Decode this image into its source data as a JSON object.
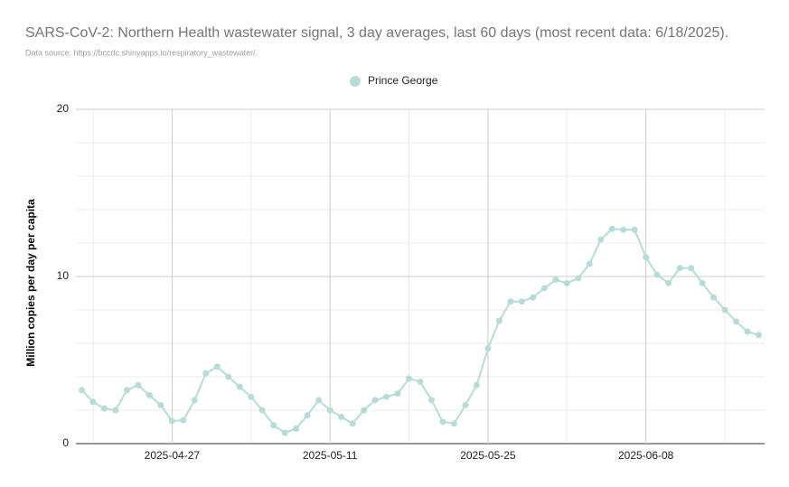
{
  "chart_data": {
    "type": "line",
    "title": "SARS-CoV-2: Northern Health wastewater signal, 3 day averages, last 60 days (most recent data: 6/18/2025).",
    "subtitle": "Data source: https://bccdc.shinyapps.io/respiratory_wastewater/.",
    "y_label": "Million copies per day per capita",
    "legend": "top",
    "grid": true,
    "x": [
      "2025-04-19",
      "2025-04-20",
      "2025-04-21",
      "2025-04-22",
      "2025-04-23",
      "2025-04-24",
      "2025-04-25",
      "2025-04-26",
      "2025-04-27",
      "2025-04-28",
      "2025-04-29",
      "2025-04-30",
      "2025-05-01",
      "2025-05-02",
      "2025-05-03",
      "2025-05-04",
      "2025-05-05",
      "2025-05-06",
      "2025-05-07",
      "2025-05-08",
      "2025-05-09",
      "2025-05-10",
      "2025-05-11",
      "2025-05-12",
      "2025-05-13",
      "2025-05-14",
      "2025-05-15",
      "2025-05-16",
      "2025-05-17",
      "2025-05-18",
      "2025-05-19",
      "2025-05-20",
      "2025-05-21",
      "2025-05-22",
      "2025-05-23",
      "2025-05-24",
      "2025-05-25",
      "2025-05-26",
      "2025-05-27",
      "2025-05-28",
      "2025-05-29",
      "2025-05-30",
      "2025-05-31",
      "2025-06-01",
      "2025-06-02",
      "2025-06-03",
      "2025-06-04",
      "2025-06-05",
      "2025-06-06",
      "2025-06-07",
      "2025-06-08",
      "2025-06-09",
      "2025-06-10",
      "2025-06-11",
      "2025-06-12",
      "2025-06-13",
      "2025-06-14",
      "2025-06-15",
      "2025-06-16",
      "2025-06-17",
      "2025-06-18"
    ],
    "series": [
      {
        "name": "Prince George",
        "color": "#b7dcd8",
        "values": [
          3.2,
          2.5,
          2.1,
          2.0,
          3.2,
          3.5,
          2.9,
          2.3,
          1.35,
          1.4,
          2.6,
          4.2,
          4.6,
          4.0,
          3.4,
          2.8,
          2.0,
          1.1,
          0.65,
          0.9,
          1.7,
          2.6,
          2.0,
          1.6,
          1.2,
          2.0,
          2.6,
          2.8,
          3.0,
          3.9,
          3.7,
          2.6,
          1.3,
          1.2,
          2.3,
          3.5,
          5.7,
          7.35,
          8.5,
          8.5,
          8.75,
          9.3,
          9.8,
          9.6,
          9.9,
          10.75,
          12.2,
          12.85,
          12.8,
          12.8,
          11.15,
          10.1,
          9.6,
          10.5,
          10.5,
          9.6,
          8.75,
          8.0,
          7.3,
          6.7,
          6.5
        ]
      }
    ],
    "xlim": [
      "2025-04-18",
      "2025-06-19"
    ],
    "xticks": [
      "2025-04-27",
      "2025-05-11",
      "2025-05-25",
      "2025-06-08"
    ],
    "ylim": [
      0,
      20
    ],
    "yticks": [
      0,
      10,
      20
    ]
  }
}
